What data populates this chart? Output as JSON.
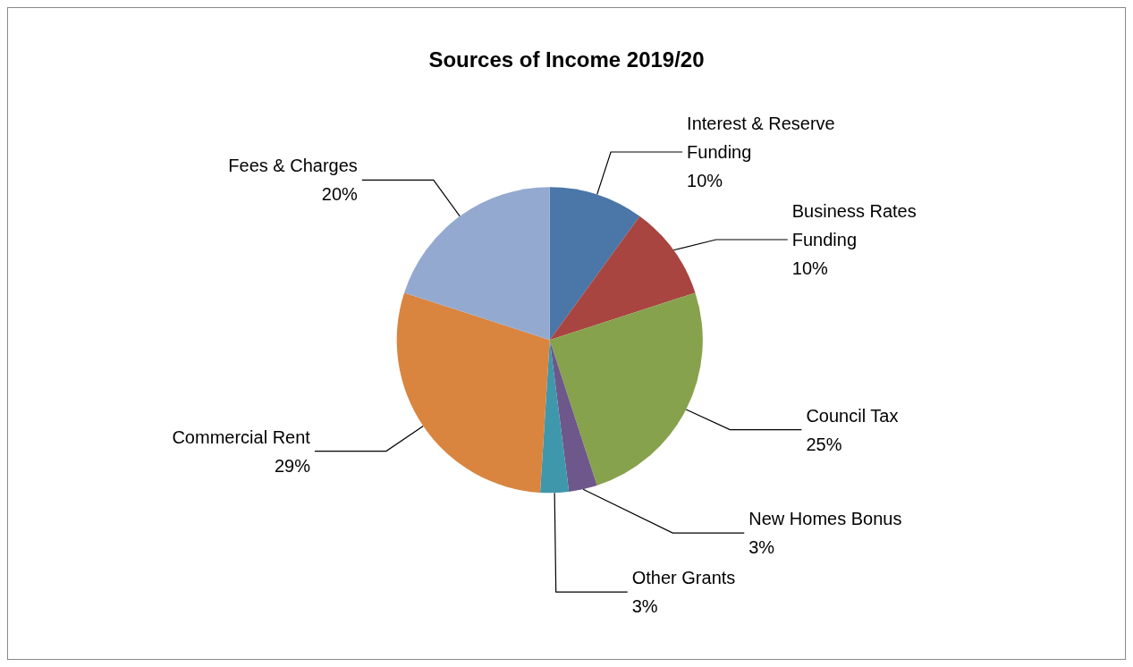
{
  "chart_data": {
    "type": "pie",
    "title": "Sources of Income 2019/20",
    "categories": [
      "Interest & Reserve Funding",
      "Business Rates Funding",
      "Council Tax",
      "New Homes Bonus",
      "Other Grants",
      "Commercial Rent",
      "Fees & Charges"
    ],
    "values": [
      10,
      10,
      25,
      3,
      3,
      29,
      20
    ],
    "colors": [
      "#4a76a8",
      "#a84541",
      "#86a24d",
      "#6e578a",
      "#3f97ab",
      "#d9843f",
      "#94a9cf"
    ],
    "value_labels": [
      "10%",
      "10%",
      "25%",
      "3%",
      "3%",
      "29%",
      "20%"
    ],
    "legend": false
  }
}
